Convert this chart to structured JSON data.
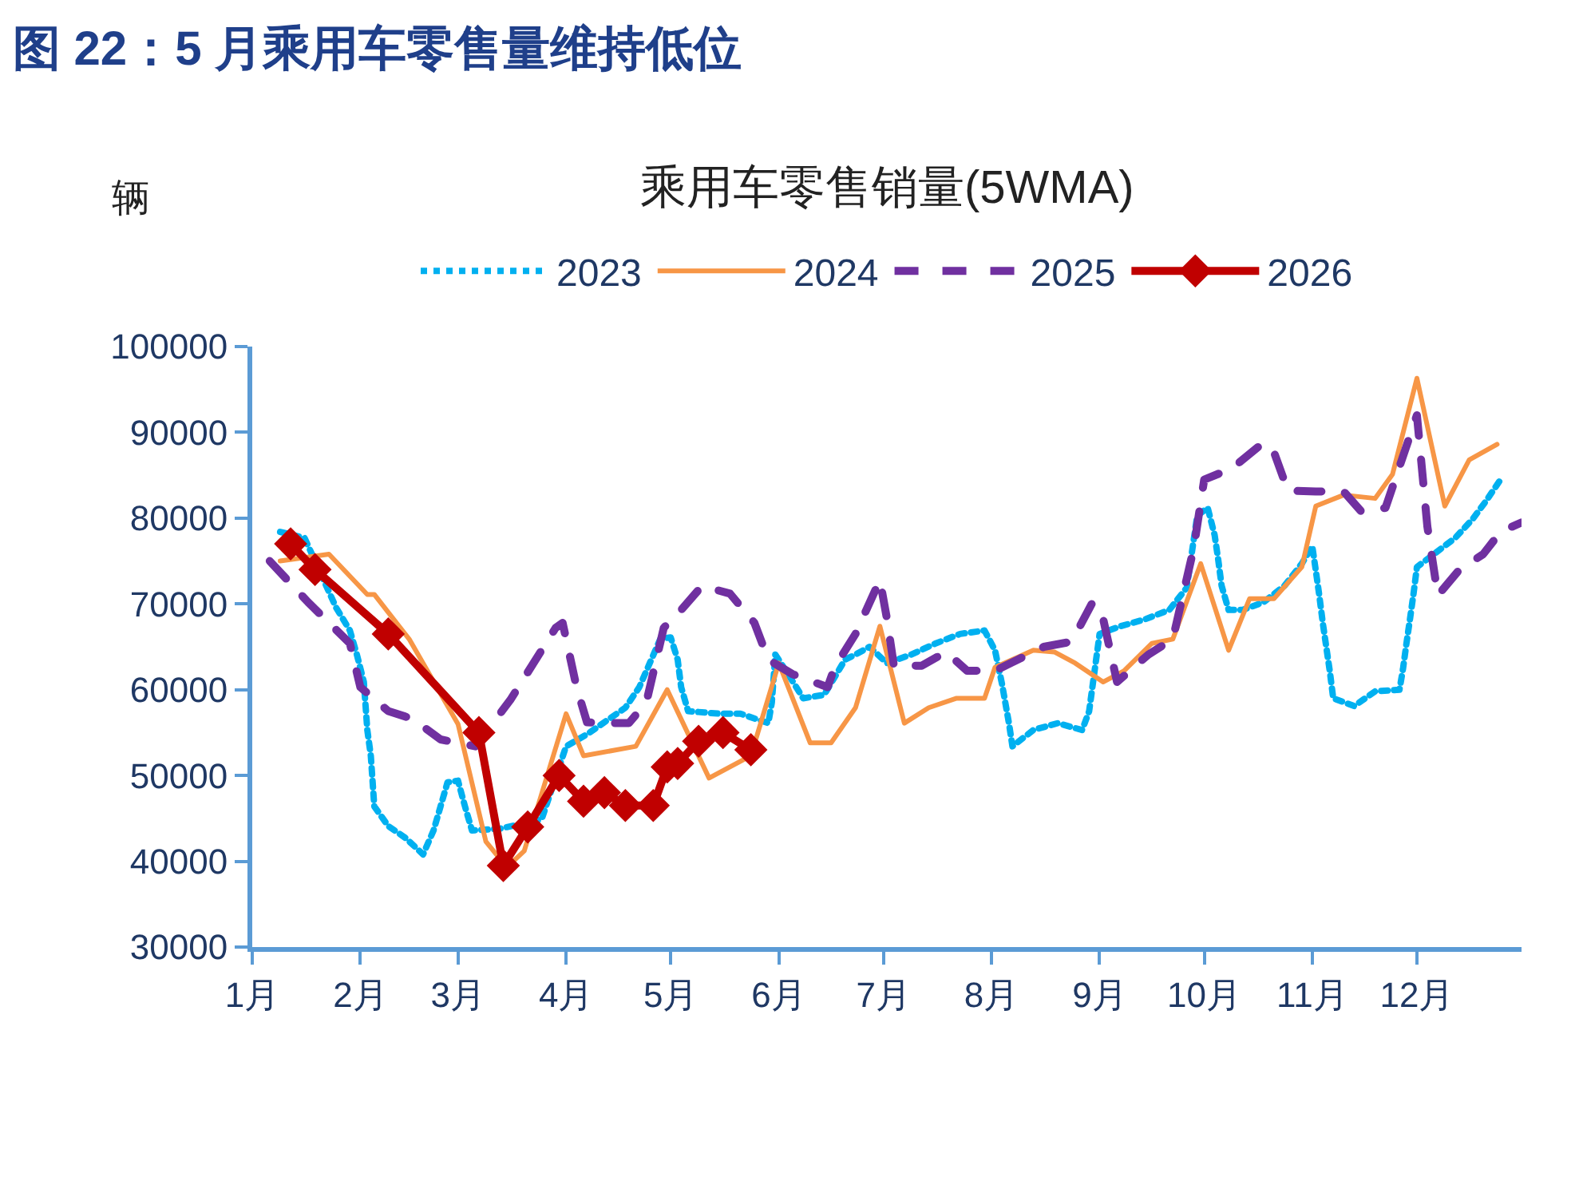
{
  "chart_data": {
    "type": "line",
    "title": "图 22：5 月乘用车零售量维持低位",
    "subtitle": "乘用车零售销量(5WMA)",
    "ylabel": "辆",
    "xlim": [
      "--01-01",
      "--12-31"
    ],
    "xticks": [
      {
        "value": "--01-01",
        "label": "1月"
      },
      {
        "value": "--02-01",
        "label": "2月"
      },
      {
        "value": "--03-01",
        "label": "3月"
      },
      {
        "value": "--04-01",
        "label": "4月"
      },
      {
        "value": "--05-01",
        "label": "5月"
      },
      {
        "value": "--06-01",
        "label": "6月"
      },
      {
        "value": "--07-01",
        "label": "7月"
      },
      {
        "value": "--08-01",
        "label": "8月"
      },
      {
        "value": "--09-01",
        "label": "9月"
      },
      {
        "value": "--10-01",
        "label": "10月"
      },
      {
        "value": "--11-01",
        "label": "11月"
      },
      {
        "value": "--12-01",
        "label": "12月"
      }
    ],
    "ylim": [
      30000,
      100000
    ],
    "yticks": [
      30000,
      40000,
      50000,
      60000,
      70000,
      80000,
      90000,
      100000
    ],
    "grid": false,
    "legend": "top",
    "series": [
      {
        "name": "2023",
        "color": "#00b0f0",
        "line_style": "dotted",
        "marker": "none",
        "x": [
          "--01-09",
          "--01-16",
          "--01-25",
          "--01-29",
          "--01-31",
          "--02-02",
          "--02-03",
          "--02-04",
          "--02-05",
          "--02-09",
          "--02-14",
          "--02-19",
          "--02-22",
          "--02-24",
          "--02-26",
          "--03-01",
          "--03-03",
          "--03-05",
          "--03-13",
          "--03-25",
          "--04-01",
          "--04-07",
          "--04-18",
          "--04-22",
          "--04-25",
          "--04-28",
          "--05-01",
          "--05-03",
          "--05-04",
          "--05-06",
          "--05-15",
          "--05-21",
          "--05-29",
          "--05-30",
          "--05-31",
          "--06-04",
          "--06-08",
          "--06-14",
          "--06-20",
          "--06-23",
          "--06-27",
          "--07-02",
          "--07-09",
          "--07-16",
          "--07-23",
          "--07-30",
          "--08-02",
          "--08-04",
          "--08-06",
          "--08-07",
          "--08-13",
          "--08-20",
          "--08-27",
          "--08-29",
          "--08-31",
          "--09-01",
          "--09-07",
          "--09-14",
          "--09-21",
          "--09-26",
          "--09-28",
          "--09-29",
          "--10-02",
          "--10-04",
          "--10-05",
          "--10-06",
          "--10-08",
          "--10-12",
          "--10-18",
          "--10-24",
          "--10-29",
          "--11-01",
          "--11-02",
          "--11-03",
          "--11-04",
          "--11-05",
          "--11-06",
          "--11-07",
          "--11-13",
          "--11-19",
          "--11-26",
          "--11-27",
          "--11-28",
          "--11-29",
          "--11-30",
          "--12-01",
          "--12-12",
          "--12-17",
          "--12-21",
          "--12-25"
        ],
        "values": [
          78400,
          77700,
          69600,
          66900,
          64100,
          60900,
          55300,
          52300,
          46400,
          44100,
          42700,
          40800,
          43600,
          46400,
          49200,
          49400,
          46400,
          43600,
          43800,
          44900,
          53400,
          54800,
          57900,
          60300,
          63100,
          65900,
          66100,
          63500,
          60300,
          57500,
          57200,
          57200,
          56100,
          58500,
          64100,
          61600,
          59000,
          59400,
          63500,
          64100,
          65000,
          63100,
          64100,
          65400,
          66500,
          66900,
          64600,
          60700,
          56100,
          53400,
          55300,
          56100,
          55300,
          57500,
          63500,
          66500,
          67400,
          68200,
          69300,
          71900,
          77500,
          80300,
          81200,
          78000,
          75200,
          72100,
          69300,
          69300,
          70200,
          72100,
          74700,
          76700,
          73900,
          71000,
          67800,
          65000,
          62200,
          59000,
          58100,
          59800,
          60000,
          62400,
          65400,
          68200,
          71100,
          74300,
          77700,
          79900,
          82100,
          84500
        ]
      },
      {
        "name": "2024",
        "color": "#f79646",
        "line_style": "solid",
        "marker": "none",
        "x": [
          "--01-09",
          "--01-23",
          "--02-03",
          "--02-05",
          "--02-15",
          "--03-01",
          "--03-09",
          "--03-15",
          "--03-20",
          "--04-01",
          "--04-06",
          "--04-21",
          "--04-30",
          "--05-12",
          "--05-24",
          "--06-01",
          "--06-10",
          "--06-16",
          "--06-23",
          "--06-30",
          "--07-07",
          "--07-14",
          "--07-22",
          "--07-30",
          "--08-02",
          "--08-13",
          "--08-19",
          "--08-25",
          "--09-02",
          "--09-08",
          "--09-16",
          "--09-22",
          "--09-30",
          "--10-08",
          "--10-14",
          "--10-21",
          "--10-29",
          "--11-02",
          "--11-10",
          "--11-19",
          "--11-24",
          "--12-01",
          "--12-09",
          "--12-16",
          "--12-24"
        ],
        "values": [
          75000,
          75800,
          71100,
          71100,
          65900,
          56000,
          42300,
          39300,
          41200,
          57200,
          52300,
          53400,
          60000,
          49700,
          52300,
          63100,
          53800,
          53800,
          57900,
          67400,
          56100,
          57900,
          59000,
          59000,
          62600,
          64600,
          64400,
          63100,
          60900,
          62200,
          65400,
          65900,
          74700,
          64600,
          70600,
          70600,
          74300,
          81400,
          82700,
          82300,
          85100,
          96300,
          81400,
          86800,
          88600
        ]
      },
      {
        "name": "2025",
        "color": "#7030a0",
        "line_style": "dashed",
        "marker": "none",
        "x": [
          "--01-06",
          "--01-17",
          "--01-29",
          "--02-01",
          "--02-09",
          "--02-16",
          "--02-24",
          "--03-06",
          "--03-16",
          "--03-29",
          "--03-31",
          "--04-04",
          "--04-07",
          "--04-13",
          "--04-19",
          "--04-24",
          "--04-29",
          "--05-04",
          "--05-10",
          "--05-18",
          "--05-25",
          "--05-29",
          "--06-05",
          "--06-15",
          "--06-17",
          "--06-23",
          "--06-30",
          "--07-02",
          "--07-04",
          "--07-12",
          "--07-19",
          "--07-25",
          "--08-02",
          "--08-16",
          "--08-24",
          "--08-30",
          "--09-02",
          "--09-06",
          "--09-15",
          "--09-22",
          "--09-28",
          "--10-01",
          "--10-09",
          "--10-18",
          "--10-21",
          "--10-25",
          "--11-02",
          "--11-10",
          "--11-15",
          "--11-22",
          "--12-01",
          "--12-04",
          "--12-07",
          "--12-13",
          "--12-20",
          "--12-25",
          "--12-31"
        ],
        "values": [
          75000,
          70200,
          65400,
          60300,
          57500,
          56600,
          54200,
          53400,
          58800,
          67200,
          67800,
          60300,
          56200,
          56100,
          56100,
          58500,
          67200,
          69300,
          72100,
          71200,
          67800,
          63500,
          61800,
          60300,
          62600,
          66500,
          72800,
          68300,
          62800,
          62800,
          64400,
          62200,
          62200,
          65000,
          65600,
          70200,
          68300,
          60900,
          64100,
          65900,
          76500,
          84500,
          85800,
          88800,
          87700,
          83200,
          83100,
          83100,
          80800,
          81200,
          92000,
          79000,
          71000,
          73900,
          75800,
          78400,
          79500
        ]
      },
      {
        "name": "2026",
        "color": "#c00000",
        "line_style": "solid",
        "marker": "diamond",
        "x": [
          "--01-12",
          "--01-19",
          "--02-09",
          "--03-07",
          "--03-14",
          "--03-21",
          "--03-30",
          "--04-06",
          "--04-12",
          "--04-18",
          "--04-26",
          "--04-30",
          "--05-03",
          "--05-09",
          "--05-16",
          "--05-24"
        ],
        "values": [
          77000,
          74000,
          66500,
          55000,
          39500,
          44000,
          50000,
          47000,
          48000,
          46500,
          46500,
          51000,
          51400,
          54000,
          55000,
          53000
        ]
      }
    ]
  }
}
